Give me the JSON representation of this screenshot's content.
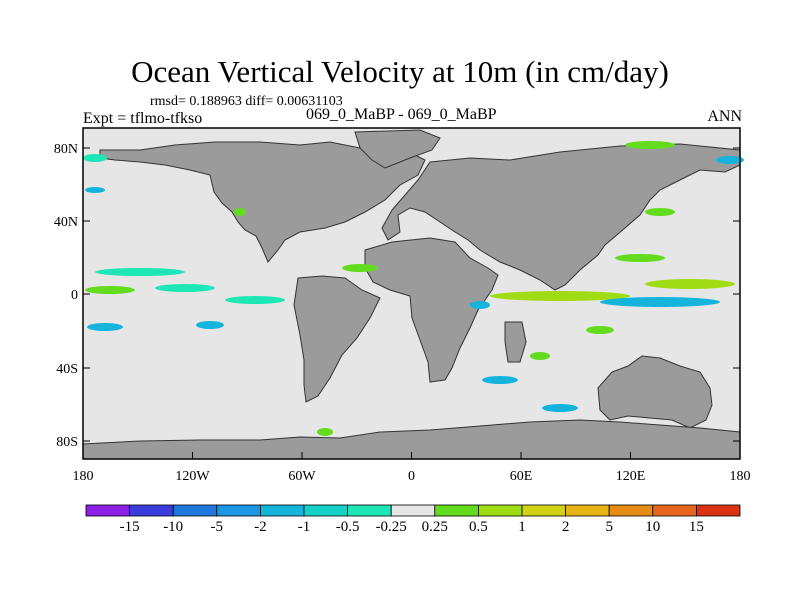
{
  "title": "Ocean Vertical Velocity at 10m (in cm/day)",
  "stats": "rmsd= 0.188963 diff= 0.00631103",
  "case_label": "069_0_MaBP - 069_0_MaBP",
  "expt_label": "Expt = tflmo-tfkso",
  "season_label": "ANN",
  "y_ticks": [
    "80N",
    "40N",
    "0",
    "40S",
    "80S"
  ],
  "x_ticks": [
    "180",
    "120W",
    "60W",
    "0",
    "60E",
    "120E",
    "180"
  ],
  "colorbar": {
    "labels": [
      "-15",
      "-10",
      "-5",
      "-2",
      "-1",
      "-0.5",
      "-0.25",
      "0.25",
      "0.5",
      "1",
      "2",
      "5",
      "10",
      "15"
    ],
    "colors": [
      "#8c1ee6",
      "#3c3cdc",
      "#1e78dc",
      "#1e96e6",
      "#14b4dc",
      "#14d2c8",
      "#1ee6b4",
      "#e6e6e6",
      "#64dc1e",
      "#a0dc14",
      "#d2d214",
      "#e6b414",
      "#e68c14",
      "#e6641e",
      "#dc3214"
    ]
  },
  "colors": {
    "ocean": "#e6e6e6",
    "land": "#9b9b9b"
  }
}
